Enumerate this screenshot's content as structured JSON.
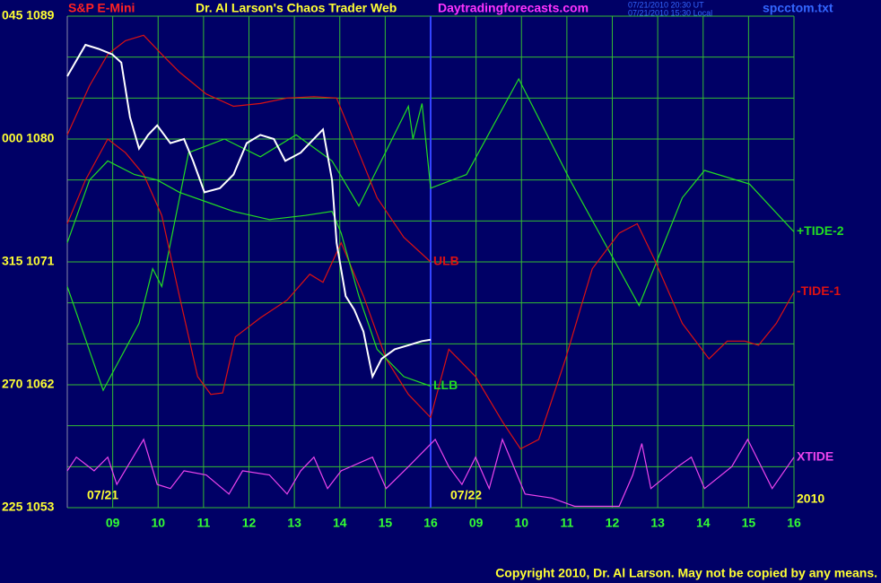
{
  "chart_data": {
    "type": "line",
    "title": "Dr. Al Larson's Chaos Trader Web",
    "instrument": "S&P E-Mini",
    "site": "Daytradingforecasts.com",
    "timestamps": [
      "07/21/2010 20:30 UT",
      "07/21/2010 15:30 Local"
    ],
    "file": "spcctom.txt",
    "copyright": "Copyright 2010, Dr. Al Larson. May not be copied by any means.",
    "day_labels": [
      "07/21",
      "07/22"
    ],
    "year": "2010",
    "xlim": [
      0,
      16
    ],
    "xticks": [
      {
        "value": 1,
        "label": "09"
      },
      {
        "value": 2,
        "label": "10"
      },
      {
        "value": 3,
        "label": "11"
      },
      {
        "value": 4,
        "label": "12"
      },
      {
        "value": 5,
        "label": "13"
      },
      {
        "value": 6,
        "label": "14"
      },
      {
        "value": 7,
        "label": "15"
      },
      {
        "value": 8,
        "label": "16"
      },
      {
        "value": 9,
        "label": "09"
      },
      {
        "value": 10,
        "label": "10"
      },
      {
        "value": 11,
        "label": "11"
      },
      {
        "value": 12,
        "label": "12"
      },
      {
        "value": 13,
        "label": "13"
      },
      {
        "value": 14,
        "label": "14"
      },
      {
        "value": 15,
        "label": "15"
      },
      {
        "value": 16,
        "label": "16"
      }
    ],
    "day_break": 8,
    "ylim": [
      1053,
      1089
    ],
    "yticks": [
      {
        "value": 1089,
        "label": "045 1089"
      },
      {
        "value": 1080,
        "label": "000 1080"
      },
      {
        "value": 1071,
        "label": "315 1071"
      },
      {
        "value": 1062,
        "label": "270 1062"
      },
      {
        "value": 1053,
        "label": "225 1053"
      }
    ],
    "ygrid": [
      1053,
      1056,
      1059,
      1062,
      1065,
      1068,
      1071,
      1074,
      1077,
      1080,
      1083,
      1086,
      1089
    ],
    "grid": true,
    "grid_color": "#33bb33",
    "price": {
      "color": "#ffffff",
      "x": [
        0,
        0.4,
        0.69,
        0.99,
        1.19,
        1.38,
        1.58,
        1.78,
        1.98,
        2.27,
        2.57,
        2.77,
        3.02,
        3.36,
        3.66,
        3.95,
        4.25,
        4.55,
        4.8,
        5.14,
        5.34,
        5.63,
        5.83,
        5.93,
        6.13,
        6.32,
        6.52,
        6.72,
        6.92,
        7.21,
        7.51,
        7.81,
        8.0
      ],
      "values": [
        1084.6,
        1086.9,
        1086.6,
        1086.2,
        1085.6,
        1081.6,
        1079.3,
        1080.3,
        1081.0,
        1079.7,
        1080.0,
        1078.4,
        1076.1,
        1076.4,
        1077.4,
        1079.7,
        1080.3,
        1080.0,
        1078.4,
        1079.0,
        1079.7,
        1080.7,
        1077.0,
        1072.4,
        1068.5,
        1067.5,
        1065.9,
        1062.6,
        1063.9,
        1064.6,
        1064.9,
        1065.2,
        1065.3
      ]
    },
    "series": [
      {
        "name": "+TIDE-2",
        "color": "#22dd22",
        "x": [
          0,
          0.79,
          1.58,
          1.88,
          2.08,
          2.67,
          3.46,
          4.25,
          5.04,
          5.83,
          6.42,
          7.51,
          7.61,
          7.81,
          8.0,
          8.79,
          9.94,
          11.07,
          12.59,
          13.54,
          14.03,
          15.02,
          16.0
        ],
        "values": [
          1069.2,
          1061.6,
          1066.5,
          1070.5,
          1069.2,
          1079.0,
          1080.0,
          1078.7,
          1080.3,
          1078.4,
          1075.1,
          1082.4,
          1080.0,
          1082.6,
          1076.4,
          1077.4,
          1084.4,
          1077.0,
          1067.8,
          1075.7,
          1077.7,
          1076.7,
          1073.2
        ]
      },
      {
        "name": "ULB",
        "color": "#dd1111",
        "x": [
          0,
          0.49,
          0.89,
          1.28,
          1.68,
          2.08,
          2.47,
          3.06,
          3.66,
          4.25,
          4.84,
          5.43,
          5.93,
          6.42,
          6.82,
          7.41,
          8.0
        ],
        "values": [
          1080.3,
          1083.9,
          1086.2,
          1087.2,
          1087.6,
          1086.2,
          1084.9,
          1083.3,
          1082.4,
          1082.6,
          1083.0,
          1083.1,
          1083.0,
          1079.0,
          1075.7,
          1072.8,
          1071.0
        ]
      },
      {
        "name": "-TIDE-1",
        "color": "#dd1111",
        "x": [
          0,
          0.4,
          0.89,
          1.28,
          1.68,
          2.08,
          2.47,
          2.87,
          3.16,
          3.42,
          3.7,
          4.25,
          4.84,
          5.34,
          5.63,
          6.03,
          6.52,
          7.02,
          7.51,
          8.0,
          8.4,
          8.99,
          9.58,
          9.98,
          10.38,
          10.97,
          11.56,
          12.15,
          12.55,
          12.94,
          13.54,
          14.13,
          14.53,
          14.92,
          15.22,
          15.61,
          16.0
        ],
        "values": [
          1073.8,
          1077.0,
          1080.0,
          1079.0,
          1077.4,
          1074.4,
          1068.5,
          1062.6,
          1061.3,
          1061.4,
          1065.5,
          1066.9,
          1068.2,
          1070.1,
          1069.5,
          1072.4,
          1068.5,
          1063.9,
          1061.3,
          1059.6,
          1064.6,
          1062.6,
          1059.3,
          1057.3,
          1058.0,
          1063.9,
          1070.5,
          1073.1,
          1073.8,
          1071.1,
          1066.5,
          1063.9,
          1065.2,
          1065.2,
          1064.9,
          1066.5,
          1068.8
        ]
      },
      {
        "name": "LLB",
        "color": "#22dd22",
        "x": [
          0,
          0.49,
          0.89,
          1.48,
          1.98,
          2.47,
          3.06,
          3.66,
          4.45,
          5.24,
          5.83,
          6.03,
          6.42,
          6.82,
          7.41,
          8.0
        ],
        "values": [
          1072.4,
          1077.0,
          1078.4,
          1077.4,
          1077.0,
          1076.1,
          1075.4,
          1074.7,
          1074.1,
          1074.4,
          1074.7,
          1073.1,
          1068.5,
          1064.6,
          1062.6,
          1061.9
        ]
      },
      {
        "name": "XTIDE",
        "color": "#ee44ee",
        "x": [
          0,
          0.2,
          0.59,
          0.89,
          1.09,
          1.68,
          1.98,
          2.27,
          2.57,
          3.06,
          3.56,
          3.86,
          4.45,
          4.84,
          5.14,
          5.43,
          5.73,
          6.03,
          6.72,
          7.02,
          7.51,
          8.1,
          8.4,
          8.69,
          8.99,
          9.29,
          9.58,
          10.08,
          10.67,
          11.17,
          12.15,
          12.45,
          12.65,
          12.85,
          13.44,
          13.74,
          14.03,
          14.63,
          14.98,
          15.52,
          16.0
        ],
        "values": [
          1055.7,
          1056.7,
          1055.7,
          1056.7,
          1054.7,
          1058.0,
          1054.7,
          1054.4,
          1055.7,
          1055.4,
          1054.0,
          1055.7,
          1055.4,
          1054.0,
          1055.7,
          1056.7,
          1054.4,
          1055.7,
          1056.7,
          1054.4,
          1056.0,
          1058.0,
          1056.0,
          1054.7,
          1056.7,
          1054.4,
          1058.0,
          1054.0,
          1053.7,
          1053.1,
          1053.1,
          1055.4,
          1057.7,
          1054.4,
          1056.0,
          1056.7,
          1054.4,
          1056.0,
          1058.0,
          1054.4,
          1056.7
        ]
      }
    ]
  }
}
